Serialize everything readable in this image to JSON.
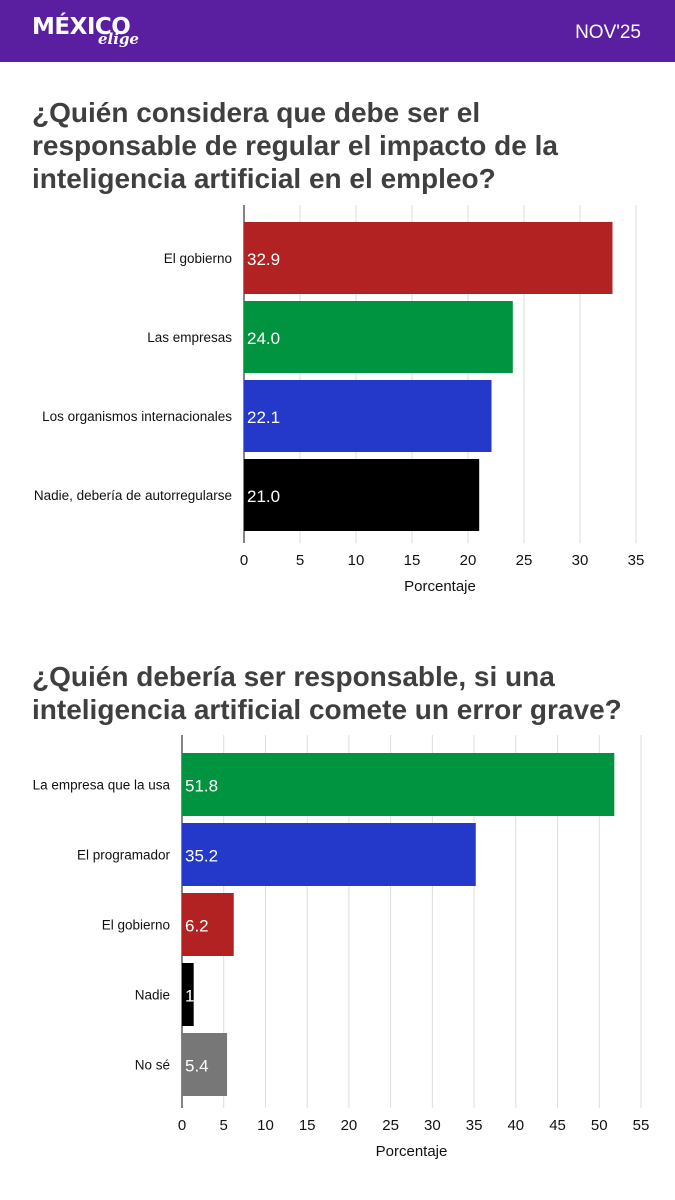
{
  "header": {
    "logo_main": "MÉXICO",
    "logo_sub": "elige",
    "date": "NOV'25",
    "background": "#5a1fa0"
  },
  "chart_data": [
    {
      "type": "bar",
      "orientation": "horizontal",
      "title": "¿Quién considera que debe ser el responsable de regular el impacto de la inteligencia artificial en el empleo?",
      "categories": [
        "El gobierno",
        "Las empresas",
        "Los organismos internacionales",
        "Nadie, debería de autorregularse"
      ],
      "values": [
        32.9,
        24.0,
        22.1,
        21.0
      ],
      "value_labels": [
        "32.9",
        "24.0",
        "22.1",
        "21.0"
      ],
      "colors": [
        "#b22222",
        "#019440",
        "#2438c9",
        "#000000"
      ],
      "xlabel": "Porcentaje",
      "ylabel": "",
      "xlim": [
        0,
        35
      ],
      "ticks": [
        "0",
        "5",
        "10",
        "15",
        "20",
        "25",
        "30",
        "35"
      ],
      "tick_values": [
        0,
        5,
        10,
        15,
        20,
        25,
        30,
        35
      ],
      "grid": true
    },
    {
      "type": "bar",
      "orientation": "horizontal",
      "title": "¿Quién debería ser responsable, si una inteligencia artificial comete un error grave?",
      "categories": [
        "La empresa que la usa",
        "El programador",
        "El gobierno",
        "Nadie",
        "No sé"
      ],
      "values": [
        51.8,
        35.2,
        6.2,
        1.4,
        5.4
      ],
      "value_labels": [
        "51.8",
        "35.2",
        "6.2",
        "1.4",
        "5.4"
      ],
      "colors": [
        "#019440",
        "#2438c9",
        "#b22222",
        "#000000",
        "#777777"
      ],
      "xlabel": "Porcentaje",
      "ylabel": "",
      "xlim": [
        0,
        55
      ],
      "ticks": [
        "0",
        "5",
        "10",
        "15",
        "20",
        "25",
        "30",
        "35",
        "40",
        "45",
        "50",
        "55"
      ],
      "tick_values": [
        0,
        5,
        10,
        15,
        20,
        25,
        30,
        35,
        40,
        45,
        50,
        55
      ],
      "grid": true
    }
  ]
}
